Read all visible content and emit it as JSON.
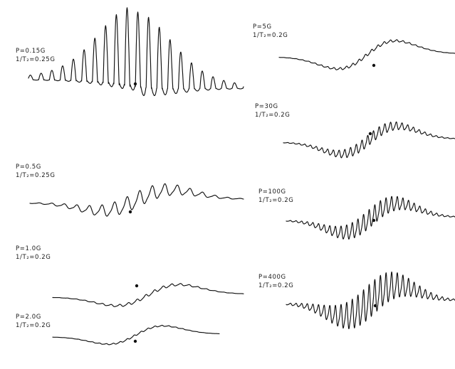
{
  "chart_data": {
    "type": "line",
    "panels": [
      {
        "p_label": "P=0.15G",
        "t2_label": "1/T₂=0.25G",
        "p": 0.15,
        "inv_t2": 0.25
      },
      {
        "p_label": "P=0.5G",
        "t2_label": "1/T₂=0.25G",
        "p": 0.5,
        "inv_t2": 0.25
      },
      {
        "p_label": "P=1.0G",
        "t2_label": "1/T₂=0.2G",
        "p": 1.0,
        "inv_t2": 0.2
      },
      {
        "p_label": "P=2.0G",
        "t2_label": "1/T₂=0.2G",
        "p": 2.0,
        "inv_t2": 0.2
      },
      {
        "p_label": "P=5G",
        "t2_label": "1/T₂=0.2G",
        "p": 5,
        "inv_t2": 0.2
      },
      {
        "p_label": "P=30G",
        "t2_label": "1/T₂=0.2G",
        "p": 30,
        "inv_t2": 0.2
      },
      {
        "p_label": "P=100G",
        "t2_label": "1/T₂=0.2G",
        "p": 100,
        "inv_t2": 0.2
      },
      {
        "p_label": "P=400G",
        "t2_label": "1/T₂=0.2G",
        "p": 400,
        "inv_t2": 0.2
      }
    ],
    "xlabel": "",
    "ylabel": "",
    "grid": false
  },
  "colors": {
    "ink": "#111111",
    "background": "#ffffff"
  }
}
